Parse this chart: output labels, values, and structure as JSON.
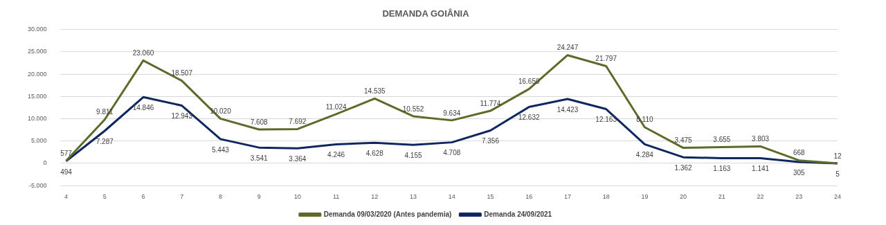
{
  "chart_data": {
    "type": "line",
    "title": "DEMANDA GOIÂNIA",
    "categories": [
      "4",
      "5",
      "6",
      "7",
      "8",
      "9",
      "10",
      "11",
      "12",
      "13",
      "14",
      "15",
      "16",
      "17",
      "18",
      "19",
      "20",
      "21",
      "22",
      "23",
      "24"
    ],
    "series": [
      {
        "name": "Demanda 09/03/2020 (Antes pandemia)",
        "color": "#5a6b2a",
        "values": [
          577,
          9811,
          23060,
          18507,
          10020,
          7608,
          7692,
          11024,
          14535,
          10552,
          9634,
          11774,
          16650,
          24247,
          21797,
          8110,
          3475,
          3655,
          3803,
          668,
          12
        ],
        "value_labels": [
          "577",
          "9.811",
          "23.060",
          "18.507",
          "10.020",
          "7.608",
          "7.692",
          "11.024",
          "14.535",
          "10.552",
          "9.634",
          "11.774",
          "16.650",
          "24.247",
          "21.797",
          "8.110",
          "3.475",
          "3.655",
          "3.803",
          "668",
          "12"
        ]
      },
      {
        "name": "Demanda 24/09/2021",
        "color": "#0e2760",
        "values": [
          494,
          7287,
          14846,
          12943,
          5443,
          3541,
          3364,
          4246,
          4628,
          4155,
          4708,
          7356,
          12632,
          14423,
          12163,
          4284,
          1362,
          1163,
          1141,
          305,
          5
        ],
        "value_labels": [
          "494",
          "7.287",
          "14.846",
          "12.943",
          "5.443",
          "3.541",
          "3.364",
          "4.246",
          "4.628",
          "4.155",
          "4.708",
          "7.356",
          "12.632",
          "14.423",
          "12.163",
          "4.284",
          "1.362",
          "1.163",
          "1.141",
          "305",
          "5"
        ]
      }
    ],
    "ylim": [
      -5000,
      30000
    ],
    "yticks": [
      {
        "value": -5000,
        "label": "-5.000"
      },
      {
        "value": 0,
        "label": "0"
      },
      {
        "value": 5000,
        "label": "5.000"
      },
      {
        "value": 10000,
        "label": "10.000"
      },
      {
        "value": 15000,
        "label": "15.000"
      },
      {
        "value": 20000,
        "label": "20.000"
      },
      {
        "value": 25000,
        "label": "25.000"
      },
      {
        "value": 30000,
        "label": "30.000"
      }
    ],
    "grid": "y",
    "legend": "bottom",
    "marker": "none",
    "line_style": "solid"
  }
}
